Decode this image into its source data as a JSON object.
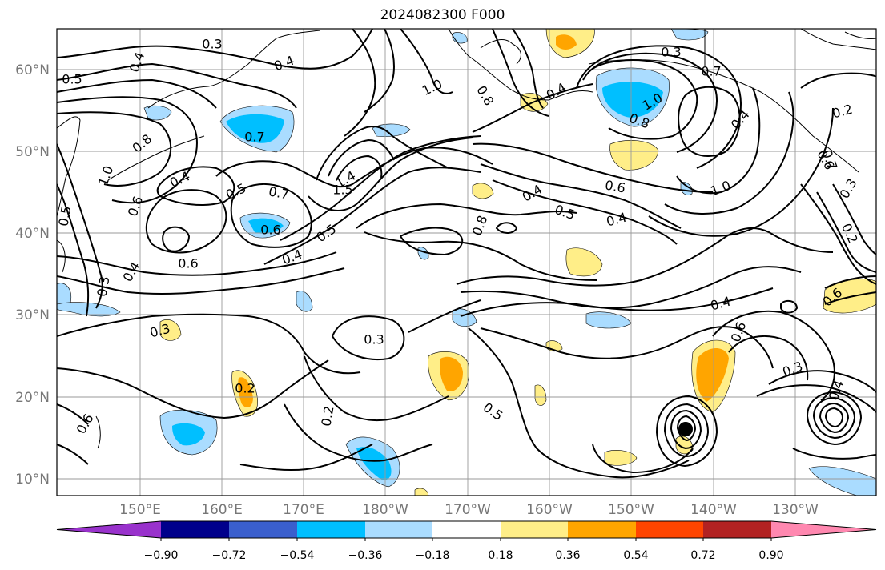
{
  "title": "2024082300 F000",
  "map": {
    "lat_labels": [
      "10°N",
      "20°N",
      "30°N",
      "40°N",
      "50°N",
      "60°N"
    ],
    "lon_labels": [
      "150°E",
      "160°E",
      "170°E",
      "180°W",
      "170°W",
      "160°W",
      "150°W",
      "140°W",
      "130°W"
    ],
    "contour_labels": [
      "0.3",
      "0.4",
      "0.5",
      "0.4",
      "0.8",
      "0.7",
      "1.0",
      "0.8",
      "0.4",
      "0.3",
      "0.7",
      "1.0",
      "0.8",
      "0.2",
      "0.4",
      "0.6",
      "1.0",
      "0.4",
      "0.5",
      "0.7",
      "1.4",
      "1.5",
      "0.6",
      "0.5",
      "0.4",
      "0.6",
      "0.4",
      "0.6",
      "0.4",
      "0.8",
      "0.5",
      "0.4",
      "0.6",
      "0.5",
      "0.4",
      "0.3",
      "0.3",
      "0.3",
      "0.2",
      "0.2",
      "0.5",
      "0.6",
      "0.3",
      "0.4",
      "0.3",
      "1.0",
      "0.2",
      "0.7",
      "0.6",
      "0.6"
    ]
  },
  "colorbar": {
    "ticks": [
      "−0.90",
      "−0.72",
      "−0.54",
      "−0.36",
      "−0.18",
      "0.18",
      "0.36",
      "0.54",
      "0.72",
      "0.90"
    ],
    "colors": [
      "#9932cc",
      "#00008b",
      "#3a5fcd",
      "#00bfff",
      "#aadcff",
      "#ffffff",
      "#ffee88",
      "#ffa500",
      "#ff4500",
      "#b22222",
      "#ff88b0"
    ]
  }
}
